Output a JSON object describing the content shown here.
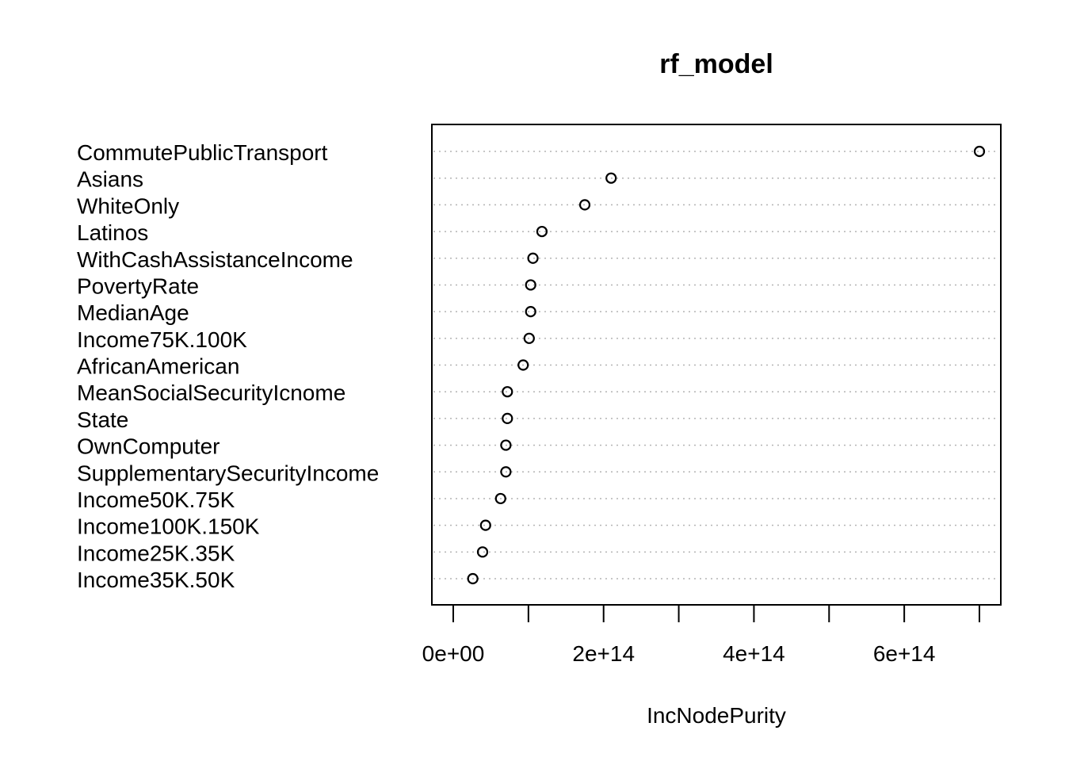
{
  "chart_data": {
    "type": "scatter",
    "subtype": "dotchart",
    "title": "rf_model",
    "xlabel": "IncNodePurity",
    "ylabel": "",
    "grid": "dotted horizontal guide lines per variable",
    "xlim": [
      0,
      720000000000000
    ],
    "xticks": [
      0,
      200000000000000,
      400000000000000,
      600000000000000
    ],
    "xtick_labels": [
      "0e+00",
      "2e+14",
      "4e+14",
      "6e+14"
    ],
    "minor_ticks": [
      100000000000000,
      300000000000000,
      500000000000000,
      700000000000000
    ],
    "categories": [
      "CommutePublicTransport",
      "Asians",
      "WhiteOnly",
      "Latinos",
      "WithCashAssistanceIncome",
      "PovertyRate",
      "MedianAge",
      "Income75K.100K",
      "AfricanAmerican",
      "MeanSocialSecurityIcnome",
      "State",
      "OwnComputer",
      "SupplementarySecurityIncome",
      "Income50K.75K",
      "Income100K.150K",
      "Income25K.35K",
      "Income35K.50K"
    ],
    "values": [
      700000000000000,
      210000000000000,
      175000000000000,
      118000000000000,
      106000000000000,
      103000000000000,
      103000000000000,
      101000000000000,
      93000000000000,
      72000000000000,
      72000000000000,
      70000000000000,
      70000000000000,
      63000000000000,
      43000000000000,
      39000000000000,
      26000000000000
    ],
    "point_color": "#000000"
  }
}
